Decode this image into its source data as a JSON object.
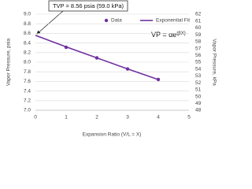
{
  "chart_data": {
    "type": "scatter",
    "annotation": "TVP = 8.56 psia (59.0 kPa)",
    "equation": {
      "base": "VP = αe",
      "exponent": "(βX)"
    },
    "x_label": "Expansion Ratio (V/L = X)",
    "y_label": "Vapor Pressure, psia",
    "y2_label": "Vapor Pressure, kPa",
    "xlim": [
      0,
      5
    ],
    "xticks": [
      0,
      1,
      2,
      3,
      4,
      5
    ],
    "ylim": [
      7,
      9
    ],
    "yticks": [
      {
        "value": 7,
        "label": "7.0"
      },
      7.2,
      7.4,
      7.6,
      7.8,
      {
        "value": 8,
        "label": "8.0"
      },
      8.2,
      8.4,
      8.6,
      8.8,
      {
        "value": 9,
        "label": "9.0"
      }
    ],
    "y2lim": [
      48,
      62
    ],
    "y2ticks": [
      48,
      49,
      50,
      51,
      52,
      53,
      54,
      55,
      56,
      57,
      58,
      59,
      60,
      61,
      62
    ],
    "grid": true,
    "series": [
      {
        "name": "Data",
        "kind": "markers",
        "color": "#7030a0",
        "x": [
          1,
          2,
          3,
          4
        ],
        "values": [
          8.31,
          8.09,
          7.86,
          7.64
        ]
      },
      {
        "name": "Exponential Fit",
        "kind": "line",
        "color": "#7030a0",
        "x": [
          0,
          1,
          2,
          3,
          4
        ],
        "values": [
          8.56,
          8.32,
          8.09,
          7.86,
          7.64
        ]
      }
    ]
  }
}
